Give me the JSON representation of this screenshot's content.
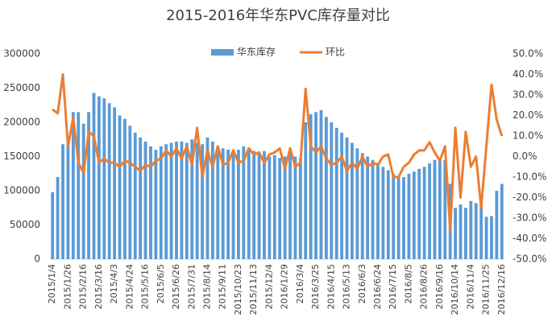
{
  "chart_data": {
    "type": "bar_line",
    "title": "2015-2016年华东PVC库存量对比",
    "categories": [
      "2015/1/4",
      null,
      null,
      "2015/1/26",
      null,
      null,
      "2015/2/16",
      null,
      null,
      "2015/3/16",
      null,
      null,
      "2015/4/3",
      null,
      null,
      "2015/4/24",
      null,
      null,
      "2015/5/16",
      null,
      null,
      "2015/6/5",
      null,
      null,
      "2015/6/26",
      null,
      null,
      "2015/7/31",
      null,
      null,
      "2015/8/14",
      null,
      null,
      "2015/9/11",
      null,
      null,
      "2015/10/23",
      null,
      null,
      "2015/11/13",
      null,
      null,
      "2015/12/4",
      null,
      null,
      "2016/1/29",
      null,
      null,
      "2016/3/4",
      null,
      null,
      "2016/3/25",
      null,
      null,
      "2016/4/15",
      null,
      null,
      "2016/5/13",
      null,
      null,
      "2016/6/3",
      null,
      null,
      "2016/6/24",
      null,
      null,
      "2016/7/15",
      null,
      null,
      "2016/8/5",
      null,
      null,
      "2016/8/26",
      null,
      null,
      "2016/9/16",
      null,
      null,
      "2016/10/14",
      null,
      null,
      "2016/11/4",
      null,
      null,
      "2016/11/25",
      null,
      null,
      "2016/12/16"
    ],
    "series": [
      {
        "name": "华东库存",
        "color": "#5b9bd5",
        "kind": "bar",
        "values": [
          98000,
          120000,
          168000,
          175000,
          215000,
          215000,
          198000,
          215000,
          243000,
          238000,
          235000,
          228000,
          222000,
          210000,
          205000,
          195000,
          185000,
          178000,
          172000,
          165000,
          160000,
          165000,
          168000,
          170000,
          172000,
          172000,
          170000,
          175000,
          170000,
          168000,
          178000,
          172000,
          165000,
          162000,
          160000,
          158000,
          160000,
          165000,
          162000,
          158000,
          155000,
          158000,
          150000,
          152000,
          148000,
          150000,
          155000,
          150000,
          148000,
          200000,
          212000,
          215000,
          218000,
          208000,
          200000,
          192000,
          185000,
          178000,
          170000,
          162000,
          155000,
          150000,
          145000,
          140000,
          135000,
          130000,
          125000,
          122000,
          120000,
          125000,
          128000,
          132000,
          135000,
          140000,
          145000,
          148000,
          145000,
          110000,
          75000,
          80000,
          75000,
          85000,
          82000,
          80000,
          62000,
          63000,
          100000,
          110000
        ]
      },
      {
        "name": "环比",
        "color": "#ed7d31",
        "kind": "line",
        "axis": "y2",
        "values": [
          23,
          21,
          40,
          5,
          19,
          -3,
          -8,
          12,
          10,
          -3,
          -1,
          -3,
          -3,
          -5,
          -2,
          -3,
          -5,
          -7,
          -4,
          -5,
          -2,
          -1,
          3,
          0,
          4,
          -1,
          5,
          -4,
          14,
          -10,
          3,
          -5,
          5,
          -4,
          -3,
          3,
          -3,
          -2,
          4,
          1,
          2,
          -3,
          1,
          2,
          4,
          -6,
          4,
          -5,
          -3,
          33,
          5,
          2,
          5,
          -1,
          -4,
          -3,
          0,
          -7,
          -3,
          -6,
          0,
          -5,
          -3,
          -4,
          0,
          1,
          -10,
          -10,
          -5,
          -3,
          1,
          3,
          3,
          7,
          2,
          -2,
          5,
          -36,
          14,
          -20,
          12,
          -5,
          0,
          -25,
          5,
          35,
          18,
          10
        ]
      }
    ],
    "ylim": [
      0,
      300000
    ],
    "yticks": [
      0,
      50000,
      100000,
      150000,
      200000,
      250000,
      300000
    ],
    "y2lim": [
      -50,
      50
    ],
    "y2ticks": [
      {
        "value": -50,
        "label": "-50.0%"
      },
      {
        "value": -40,
        "label": "-40.0%"
      },
      {
        "value": -30,
        "label": "-30.0%"
      },
      {
        "value": -20,
        "label": "-20.0%"
      },
      {
        "value": -10,
        "label": "-10.0%"
      },
      {
        "value": 0,
        "label": "0.0%"
      },
      {
        "value": 10,
        "label": "10.0%"
      },
      {
        "value": 20,
        "label": "20.0%"
      },
      {
        "value": 30,
        "label": "30.0%"
      },
      {
        "value": 40,
        "label": "40.0%"
      },
      {
        "value": 50,
        "label": "50.0%"
      }
    ],
    "legend": "top"
  }
}
